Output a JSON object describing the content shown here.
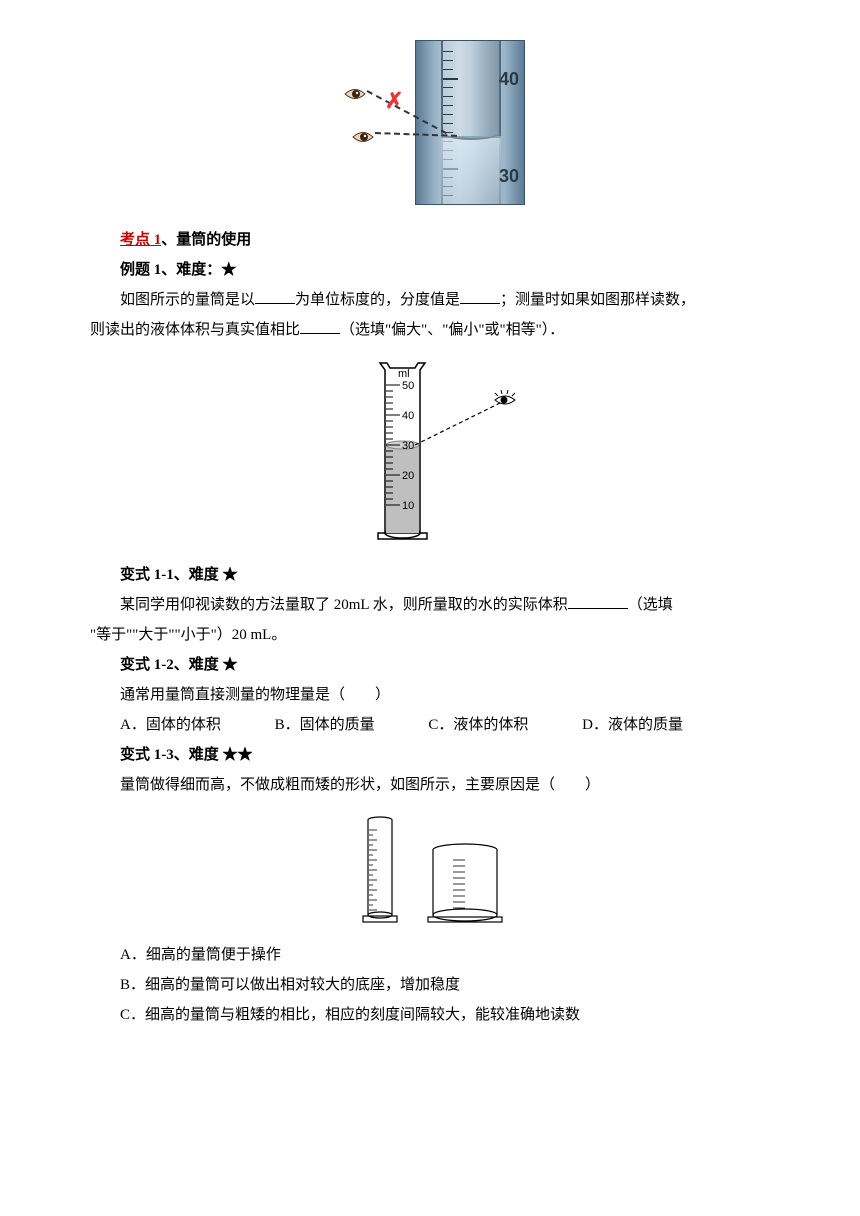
{
  "sections": {
    "kaodian": {
      "label": "考点 1",
      "title": "、量筒的使用"
    },
    "liti1": {
      "label": "例题 1、难度：★"
    },
    "liti1_text_a": "如图所示的量筒是以",
    "liti1_text_b": "为单位标度的，分度值是",
    "liti1_text_c": "；测量时如果如图那样读数，",
    "liti1_text_d": "则读出的液体体积与真实值相比",
    "liti1_text_e": "（选填\"偏大\"、\"偏小\"或\"相等\"）．",
    "bs11": {
      "label": "变式 1-1、难度 ★"
    },
    "bs11_text_a": "某同学用仰视读数的方法量取了 20mL 水，则所量取的水的实际体积",
    "bs11_text_b": "（选填",
    "bs11_text_c": "\"等于\"\"大于\"\"小于\"）20 mL。",
    "bs12": {
      "label": "变式 1-2、难度 ★"
    },
    "bs12_text": "通常用量筒直接测量的物理量是（　　）",
    "bs12_options": {
      "A": "A．固体的体积",
      "B": "B．固体的质量",
      "C": "C．液体的体积",
      "D": "D．液体的质量"
    },
    "bs13": {
      "label": "变式 1-3、难度 ★★"
    },
    "bs13_text": "量筒做得细而高，不做成粗而矮的形状，如图所示，主要原因是（　　）",
    "bs13_options": {
      "A": "A．细高的量筒便于操作",
      "B": "B．细高的量筒可以做出相对较大的底座，增加稳度",
      "C": "C．细高的量筒与粗矮的相比，相应的刻度间隔较大，能较准确地读数"
    }
  },
  "fig1": {
    "labels": {
      "t40": "40",
      "t30": "30"
    },
    "colors": {
      "bg_grad": "#5a7a95",
      "x_color": "#e33"
    }
  },
  "fig2": {
    "labels": {
      "ml": "ml",
      "t50": "50",
      "t40": "40",
      "t30": "30",
      "t20": "20",
      "t10": "10"
    }
  }
}
